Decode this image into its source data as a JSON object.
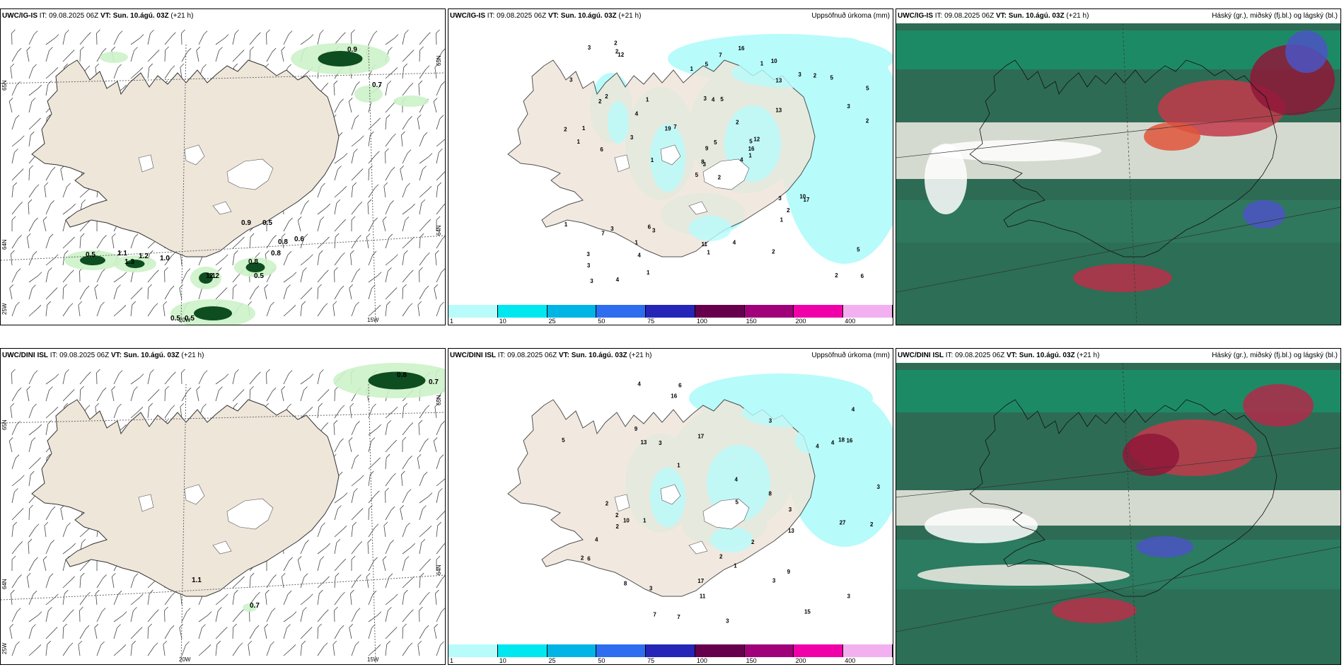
{
  "rows": [
    {
      "model": "UWC/IG-IS",
      "panels": [
        {
          "model": "UWC/IG-IS",
          "it": " IT: 09.08.2025 06Z ",
          "vt_label": "VT:",
          "vt": "Sun. 10.ágú. 03Z",
          "lead": " (+21 h)",
          "right_title": "",
          "labels": [
            "0.9",
            "0.7",
            "0.9",
            "0.5",
            "0.8",
            "0.8",
            "0.6",
            "0.8",
            "0.5",
            "1.1",
            "1.2",
            "1.3",
            "1.0",
            "2.2",
            "1.1",
            "0.5",
            "0.5",
            "0.5"
          ],
          "axis": {
            "lat_n": "65N",
            "lat_s": "64N",
            "lat_sw": "25W",
            "lon_w": "20W",
            "lon_e": "15W",
            "lat_e": "65N",
            "lat_e2": "64N"
          }
        },
        {
          "model": "UWC/IG-IS",
          "it": " IT: 09.08.2025 06Z ",
          "vt_label": "VT:",
          "vt": "Sun. 10.ágú. 03Z",
          "lead": " (+21 h)",
          "right_title": "Uppsöfnuð úrkoma (mm)",
          "labels": [
            "2",
            "2",
            "3",
            "3",
            "5",
            "3",
            "10",
            "5",
            "13",
            "4",
            "12",
            "6",
            "6",
            "5",
            "5",
            "13",
            "4",
            "3",
            "2",
            "3",
            "7",
            "3",
            "4",
            "4",
            "12",
            "17",
            "2",
            "5",
            "1",
            "3",
            "2",
            "8",
            "11",
            "9",
            "1",
            "3",
            "6",
            "2",
            "5",
            "10",
            "16",
            "19",
            "3",
            "1",
            "1",
            "2",
            "16",
            "3",
            "1",
            "1",
            "7",
            "3",
            "3",
            "2",
            "2",
            "1",
            "2",
            "3",
            "4",
            "5",
            "7",
            "1",
            "1",
            "4",
            "2",
            "2",
            "1",
            "1",
            "5",
            "1"
          ]
        },
        {
          "model": "UWC/IG-IS",
          "it": " IT: 09.08.2025 06Z ",
          "vt_label": "VT:",
          "vt": "Sun. 10.ágú. 03Z",
          "lead": " (+21 h)",
          "right_title": "Háský (gr.), miðský (fj.bl.) og lágský (bl.)"
        }
      ]
    },
    {
      "model": "UWC/DINI ISL",
      "panels": [
        {
          "model": "UWC/DINI ISL",
          "it": " IT: 09.08.2025 06Z ",
          "vt_label": "VT:",
          "vt": "Sun. 10.ágú. 03Z",
          "lead": " (+21 h)",
          "right_title": "",
          "labels": [
            "0.8",
            "0.7",
            "1.1",
            "0.7"
          ],
          "axis": {
            "lat_n": "65N",
            "lat_s": "64N",
            "lat_sw": "25W",
            "lon_w": "20W",
            "lon_e": "15W",
            "lat_e": "65N",
            "lat_e2": "64N"
          }
        },
        {
          "model": "UWC/DINI ISL",
          "it": " IT: 09.08.2025 06Z ",
          "vt_label": "VT:",
          "vt": "Sun. 10.ágú. 03Z",
          "lead": " (+21 h)",
          "right_title": "Uppsöfnuð úrkoma (mm)",
          "labels": [
            "2",
            "3",
            "4",
            "17",
            "9",
            "7",
            "4",
            "3",
            "3",
            "8",
            "5",
            "4",
            "6",
            "27",
            "6",
            "2",
            "4",
            "9",
            "13",
            "1",
            "2",
            "3",
            "11",
            "7",
            "13",
            "3",
            "16",
            "15",
            "17",
            "18",
            "2",
            "4",
            "3",
            "2",
            "2",
            "16",
            "10",
            "3",
            "2",
            "1",
            "3",
            "4",
            "5",
            "8",
            "1"
          ]
        },
        {
          "model": "UWC/DINI ISL",
          "it": " IT: 09.08.2025 06Z ",
          "vt_label": "VT:",
          "vt": "Sun. 10.ágú. 03Z",
          "lead": " (+21 h)",
          "right_title": "Háský (gr.), miðský (fj.bl.) og lágský (bl.)"
        }
      ]
    }
  ],
  "precip_scale": {
    "colors": [
      "#b8fbfb",
      "#00e8ef",
      "#00b4e6",
      "#2e6df0",
      "#2525b8",
      "#66004d",
      "#a0007a",
      "#f000a8",
      "#f3b0f0"
    ],
    "ticks": [
      "1",
      "10",
      "25",
      "50",
      "75",
      "100",
      "150",
      "200",
      "400"
    ]
  },
  "colors": {
    "land": "#efe6da",
    "sea": "#ffffff",
    "cyan": "#b8fbfb",
    "green_light": "#ccf2c8",
    "green_dark": "#0d4d1f",
    "cloud_high": "#19a37a",
    "cloud_mid": "#c23a4a",
    "cloud_low": "#4b54c4"
  }
}
